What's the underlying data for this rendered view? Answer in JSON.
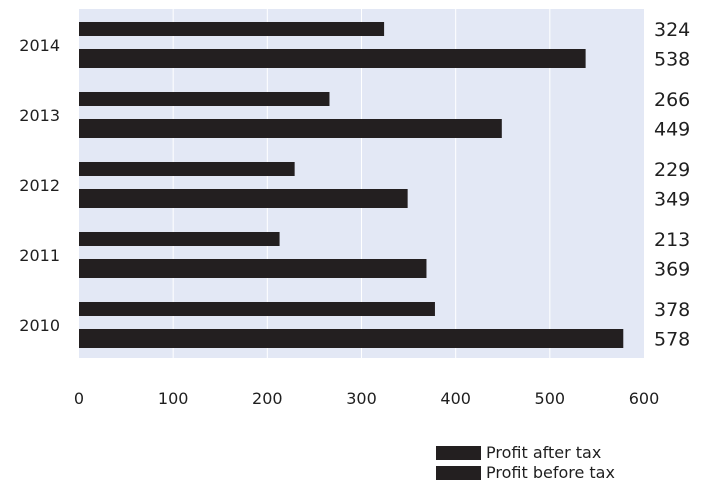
{
  "chart_data": {
    "type": "bar",
    "orientation": "horizontal",
    "title": "",
    "xlabel": "",
    "ylabel": "",
    "categories": [
      "2014",
      "2013",
      "2012",
      "2011",
      "2010"
    ],
    "series": [
      {
        "name": "Profit after tax",
        "values": [
          324,
          266,
          229,
          213,
          378
        ],
        "color": "#231f20"
      },
      {
        "name": "Profit before tax",
        "values": [
          538,
          449,
          349,
          369,
          578
        ],
        "color": "#231f20"
      }
    ],
    "xlim": [
      0,
      600
    ],
    "xticks": [
      "0",
      "100",
      "200",
      "300",
      "400",
      "500",
      "600"
    ],
    "plot_background": "#e3e8f5",
    "grid": true,
    "grid_color": "#ffffff",
    "legend_position": "bottom-right",
    "data_labels_position": "right-outside"
  }
}
